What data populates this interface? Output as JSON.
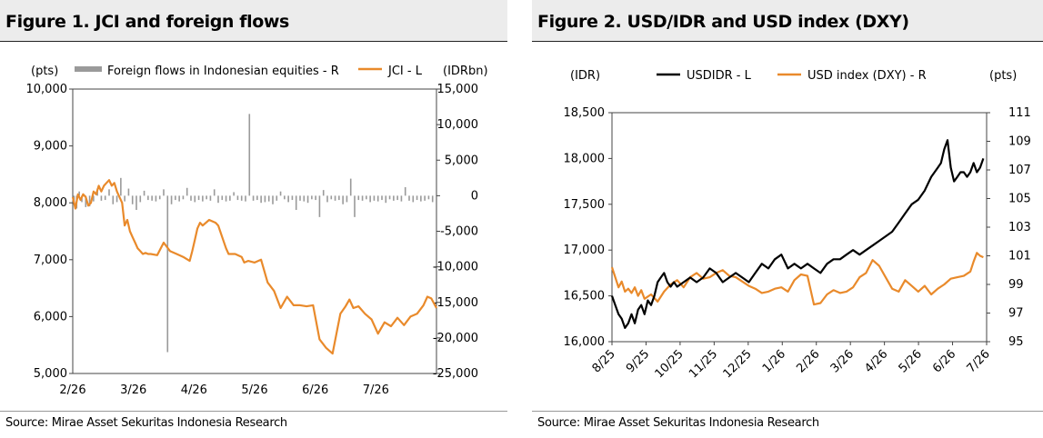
{
  "figure1": {
    "title": "Figure 1. JCI and foreign flows",
    "source": "Source: Mirae Asset Sekuritas Indonesia Research"
  },
  "figure2": {
    "title": "Figure 2. USD/IDR and USD index (DXY)",
    "source": "Source: Mirae Asset Sekuritas Indonesia Research"
  },
  "colors": {
    "jci": "#e98a2b",
    "flows": "#9a9a9a",
    "usdidr": "#000000",
    "dxy": "#e98a2b"
  },
  "chart_data": [
    {
      "type": "bar+line",
      "title": "Figure 1. JCI and foreign flows",
      "left_axis_unit": "(pts)",
      "right_axis_unit": "(IDRbn)",
      "left_ylim": [
        5000,
        10000
      ],
      "left_ticks": [
        "10,000",
        "9,000",
        "8,000",
        "7,000",
        "6,000",
        "5,000"
      ],
      "right_ylim": [
        -25000,
        15000
      ],
      "right_ticks": [
        "15,000",
        "10,000",
        "5,000",
        "0",
        "-5,000",
        "-10,000",
        "-15,000",
        "-20,000",
        "-25,000"
      ],
      "x_ticks": [
        "2/26",
        "3/26",
        "4/26",
        "5/26",
        "6/26",
        "7/26"
      ],
      "legend": [
        "Foreign flows in Indonesian equities - R",
        "JCI - L"
      ],
      "legend_position": "top",
      "x_range": [
        0,
        28
      ],
      "series": [
        {
          "name": "JCI - L",
          "x": [
            0,
            0.2,
            0.4,
            0.6,
            0.8,
            1,
            1.2,
            1.4,
            1.6,
            1.8,
            2,
            2.2,
            2.4,
            2.6,
            2.8,
            3,
            3.2,
            3.4,
            3.6,
            3.8,
            4,
            4.2,
            4.4,
            4.6,
            4.8,
            5,
            5.2,
            5.4,
            5.6,
            5.8,
            6,
            6.5,
            7,
            7.5,
            8,
            8.5,
            9,
            9.2,
            9.4,
            9.6,
            9.8,
            10,
            10.5,
            11,
            11.2,
            11.5,
            11.8,
            12,
            12.5,
            13,
            13.2,
            13.5,
            14,
            14.5,
            15,
            15.5,
            16,
            16.5,
            17,
            17.5,
            18,
            18.5,
            19,
            19.5,
            20,
            20.3,
            20.6,
            21,
            21.3,
            21.6,
            22,
            22.5,
            23,
            23.5,
            24,
            24.5,
            25,
            25.5,
            26,
            26.5,
            27,
            27.3,
            27.6,
            28
          ],
          "y": [
            8100,
            7900,
            8150,
            8050,
            8150,
            8100,
            7950,
            8000,
            8200,
            8150,
            8300,
            8200,
            8300,
            8350,
            8400,
            8300,
            8350,
            8200,
            8100,
            8000,
            7600,
            7700,
            7500,
            7400,
            7300,
            7200,
            7150,
            7100,
            7120,
            7100,
            7100,
            7080,
            7300,
            7150,
            7100,
            7050,
            6980,
            7150,
            7350,
            7550,
            7650,
            7600,
            7700,
            7650,
            7600,
            7400,
            7200,
            7100,
            7100,
            7050,
            6950,
            6980,
            6950,
            7000,
            6600,
            6450,
            6150,
            6350,
            6200,
            6200,
            6180,
            6200,
            5600,
            5450,
            5350,
            5700,
            6050,
            6180,
            6300,
            6150,
            6180,
            6050,
            5950,
            5700,
            5900,
            5830,
            5980,
            5850,
            6000,
            6050,
            6200,
            6350,
            6320,
            6150
          ]
        },
        {
          "name": "Foreign flows in Indonesian equities - R",
          "x": [
            0.1,
            0.3,
            0.5,
            0.7,
            1.0,
            1.3,
            1.6,
            1.9,
            2.2,
            2.5,
            2.8,
            3.1,
            3.4,
            3.7,
            4.0,
            4.3,
            4.6,
            4.9,
            5.2,
            5.5,
            5.8,
            6.1,
            6.4,
            6.7,
            7.0,
            7.3,
            7.6,
            7.9,
            8.2,
            8.5,
            8.8,
            9.1,
            9.4,
            9.7,
            10.0,
            10.3,
            10.6,
            10.9,
            11.2,
            11.5,
            11.8,
            12.1,
            12.4,
            12.7,
            13.0,
            13.3,
            13.6,
            13.9,
            14.2,
            14.5,
            14.8,
            15.1,
            15.4,
            15.7,
            16.0,
            16.3,
            16.6,
            16.9,
            17.2,
            17.5,
            17.8,
            18.1,
            18.4,
            18.7,
            19.0,
            19.3,
            19.6,
            19.9,
            20.2,
            20.5,
            20.8,
            21.1,
            21.4,
            21.7,
            22.0,
            22.3,
            22.6,
            22.9,
            23.2,
            23.5,
            23.8,
            24.1,
            24.4,
            24.7,
            25.0,
            25.3,
            25.6,
            25.9,
            26.2,
            26.5,
            26.8,
            27.1,
            27.4,
            27.7
          ],
          "values": [
            -1200,
            -1800,
            600,
            -900,
            -1600,
            -1500,
            -800,
            1000,
            -700,
            -600,
            900,
            -1200,
            -900,
            2500,
            -800,
            1000,
            -1200,
            -2000,
            -900,
            700,
            -600,
            -700,
            -800,
            -500,
            900,
            -22000,
            -1200,
            -600,
            -800,
            -500,
            1100,
            -700,
            -900,
            -600,
            -800,
            -500,
            -700,
            900,
            -1000,
            -600,
            -800,
            -700,
            500,
            -600,
            -700,
            -800,
            11500,
            -700,
            -600,
            -1000,
            -900,
            -800,
            -1200,
            -700,
            600,
            -500,
            -900,
            -600,
            -2000,
            -700,
            -800,
            -1000,
            -500,
            -600,
            -3000,
            800,
            -900,
            -500,
            -700,
            -600,
            -1200,
            -900,
            2400,
            -3000,
            -600,
            -700,
            -500,
            -900,
            -700,
            -800,
            -600,
            -1000,
            -500,
            -700,
            -600,
            -800,
            1200,
            -700,
            -900,
            -600,
            -800,
            -700,
            -500,
            -900
          ]
        }
      ]
    },
    {
      "type": "line",
      "title": "Figure 2. USD/IDR and USD index (DXY)",
      "left_axis_unit": "(IDR)",
      "right_axis_unit": "(pts)",
      "left_ylim": [
        16000,
        18500
      ],
      "left_ticks": [
        "18,500",
        "18,000",
        "17,500",
        "17,000",
        "16,500",
        "16,000"
      ],
      "right_ylim": [
        95,
        111
      ],
      "right_ticks": [
        "111",
        "109",
        "107",
        "105",
        "103",
        "101",
        "99",
        "97",
        "95"
      ],
      "x_ticks": [
        "8/25",
        "9/25",
        "10/25",
        "11/25",
        "12/25",
        "1/26",
        "2/26",
        "3/26",
        "4/26",
        "5/26",
        "6/26",
        "7/26"
      ],
      "legend": [
        "USDIDR - L",
        "USD index (DXY) - R"
      ],
      "legend_position": "top",
      "x_range": [
        0,
        11.5
      ],
      "series": [
        {
          "name": "USDIDR - L",
          "x": [
            0,
            0.1,
            0.2,
            0.3,
            0.4,
            0.5,
            0.6,
            0.7,
            0.8,
            0.9,
            1.0,
            1.1,
            1.2,
            1.3,
            1.4,
            1.5,
            1.6,
            1.7,
            1.8,
            1.9,
            2.0,
            2.2,
            2.4,
            2.6,
            2.8,
            3.0,
            3.2,
            3.4,
            3.6,
            3.8,
            4.0,
            4.2,
            4.4,
            4.6,
            4.8,
            5.0,
            5.2,
            5.4,
            5.6,
            5.8,
            6.0,
            6.2,
            6.4,
            6.6,
            6.8,
            7.0,
            7.2,
            7.4,
            7.6,
            7.8,
            8.0,
            8.2,
            8.4,
            8.6,
            8.8,
            9.0,
            9.2,
            9.4,
            9.6,
            9.8,
            10.0,
            10.1,
            10.2,
            10.3,
            10.4,
            10.5,
            10.6,
            10.7,
            10.8,
            10.9,
            11.0,
            11.1,
            11.2,
            11.3,
            11.4
          ],
          "y": [
            16500,
            16400,
            16300,
            16250,
            16150,
            16200,
            16300,
            16200,
            16350,
            16400,
            16300,
            16450,
            16400,
            16500,
            16650,
            16700,
            16750,
            16650,
            16600,
            16650,
            16600,
            16650,
            16700,
            16650,
            16700,
            16800,
            16750,
            16650,
            16700,
            16750,
            16700,
            16650,
            16750,
            16850,
            16800,
            16900,
            16950,
            16800,
            16850,
            16800,
            16850,
            16800,
            16750,
            16850,
            16900,
            16900,
            16950,
            17000,
            16950,
            17000,
            17050,
            17100,
            17150,
            17200,
            17300,
            17400,
            17500,
            17550,
            17650,
            17800,
            17900,
            17950,
            18100,
            18200,
            17900,
            17750,
            17800,
            17850,
            17850,
            17800,
            17850,
            17950,
            17850,
            17900,
            18000
          ]
        },
        {
          "name": "USD index (DXY) - R",
          "x": [
            0,
            0.1,
            0.2,
            0.3,
            0.4,
            0.5,
            0.6,
            0.7,
            0.8,
            0.9,
            1.0,
            1.2,
            1.4,
            1.6,
            1.8,
            2.0,
            2.2,
            2.4,
            2.6,
            2.8,
            3.0,
            3.2,
            3.4,
            3.6,
            3.8,
            4.0,
            4.2,
            4.4,
            4.6,
            4.8,
            5.0,
            5.2,
            5.4,
            5.6,
            5.8,
            6.0,
            6.2,
            6.4,
            6.6,
            6.8,
            7.0,
            7.2,
            7.4,
            7.6,
            7.8,
            8.0,
            8.2,
            8.4,
            8.6,
            8.8,
            9.0,
            9.2,
            9.4,
            9.6,
            9.8,
            10.0,
            10.2,
            10.4,
            10.6,
            10.8,
            11.0,
            11.1,
            11.2,
            11.3,
            11.4
          ],
          "y": [
            100.2,
            99.5,
            98.8,
            99.2,
            98.5,
            98.7,
            98.4,
            98.8,
            98.2,
            98.6,
            98.0,
            98.3,
            97.8,
            98.5,
            99.0,
            99.3,
            98.8,
            99.5,
            99.8,
            99.4,
            99.5,
            99.8,
            100.0,
            99.6,
            99.5,
            99.2,
            98.9,
            98.7,
            98.4,
            98.5,
            98.7,
            98.8,
            98.5,
            99.3,
            99.7,
            99.6,
            97.6,
            97.7,
            98.3,
            98.6,
            98.4,
            98.5,
            98.8,
            99.5,
            99.8,
            100.7,
            100.3,
            99.5,
            98.7,
            98.5,
            99.3,
            98.9,
            98.5,
            98.9,
            98.3,
            98.7,
            99.0,
            99.4,
            99.5,
            99.6,
            99.9,
            100.6,
            101.2,
            101.0,
            100.9
          ]
        }
      ]
    }
  ]
}
